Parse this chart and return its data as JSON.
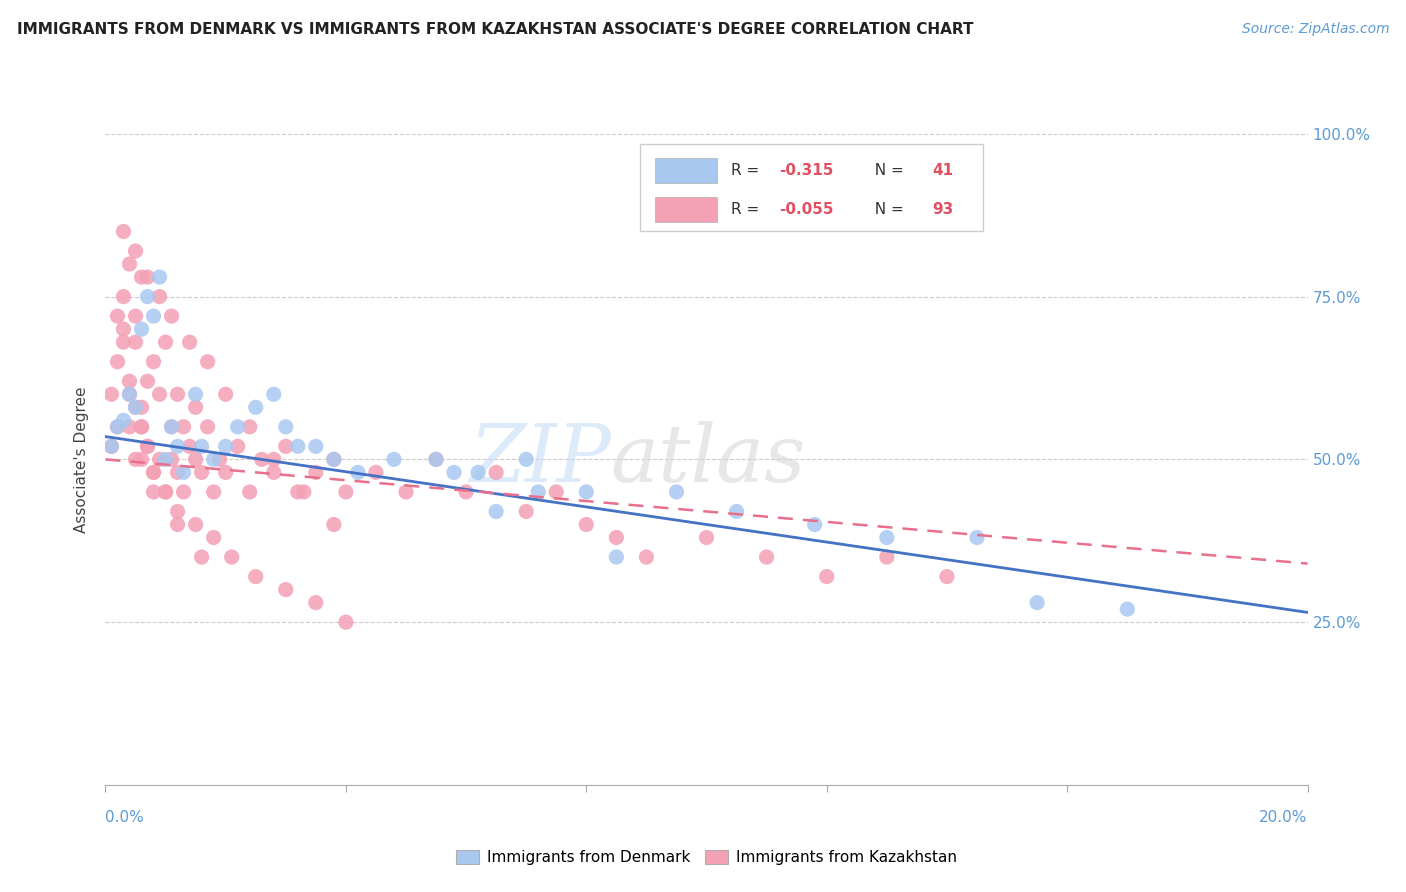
{
  "title": "IMMIGRANTS FROM DENMARK VS IMMIGRANTS FROM KAZAKHSTAN ASSOCIATE'S DEGREE CORRELATION CHART",
  "source_text": "Source: ZipAtlas.com",
  "ylabel": "Associate's Degree",
  "denmark_color": "#a8c8f0",
  "kazakhstan_color": "#f4a0b5",
  "denmark_line_color": "#4472c4",
  "kazakhstan_line_color": "#e8708a",
  "background_color": "#ffffff",
  "legend_denmark_r": "R = ",
  "legend_denmark_rv": "-0.315",
  "legend_denmark_n": "N = ",
  "legend_denmark_nv": "41",
  "legend_kazakhstan_r": "R = ",
  "legend_kazakhstan_rv": "-0.055",
  "legend_kazakhstan_n": "N = ",
  "legend_kazakhstan_nv": "93",
  "watermark_zip": "ZIP",
  "watermark_atlas": "atlas",
  "denmark_scatter_x": [
    0.001,
    0.002,
    0.003,
    0.004,
    0.005,
    0.006,
    0.007,
    0.008,
    0.009,
    0.01,
    0.011,
    0.012,
    0.013,
    0.015,
    0.016,
    0.018,
    0.02,
    0.022,
    0.025,
    0.028,
    0.03,
    0.032,
    0.035,
    0.038,
    0.042,
    0.048,
    0.055,
    0.062,
    0.07,
    0.08,
    0.095,
    0.105,
    0.118,
    0.13,
    0.145,
    0.058,
    0.065,
    0.072,
    0.085,
    0.155,
    0.17
  ],
  "denmark_scatter_y": [
    0.52,
    0.55,
    0.56,
    0.6,
    0.58,
    0.7,
    0.75,
    0.72,
    0.78,
    0.5,
    0.55,
    0.52,
    0.48,
    0.6,
    0.52,
    0.5,
    0.52,
    0.55,
    0.58,
    0.6,
    0.55,
    0.52,
    0.52,
    0.5,
    0.48,
    0.5,
    0.5,
    0.48,
    0.5,
    0.45,
    0.45,
    0.42,
    0.4,
    0.38,
    0.38,
    0.48,
    0.42,
    0.45,
    0.35,
    0.28,
    0.27
  ],
  "kazakhstan_scatter_x": [
    0.001,
    0.001,
    0.002,
    0.002,
    0.003,
    0.003,
    0.004,
    0.004,
    0.005,
    0.005,
    0.005,
    0.006,
    0.006,
    0.006,
    0.007,
    0.007,
    0.008,
    0.008,
    0.009,
    0.009,
    0.01,
    0.01,
    0.011,
    0.011,
    0.012,
    0.012,
    0.013,
    0.013,
    0.014,
    0.015,
    0.015,
    0.016,
    0.017,
    0.018,
    0.019,
    0.02,
    0.022,
    0.024,
    0.026,
    0.028,
    0.03,
    0.032,
    0.035,
    0.038,
    0.04,
    0.045,
    0.05,
    0.055,
    0.06,
    0.065,
    0.07,
    0.075,
    0.08,
    0.085,
    0.09,
    0.1,
    0.11,
    0.12,
    0.13,
    0.14,
    0.002,
    0.003,
    0.004,
    0.005,
    0.006,
    0.007,
    0.008,
    0.01,
    0.012,
    0.015,
    0.018,
    0.021,
    0.025,
    0.03,
    0.035,
    0.04,
    0.003,
    0.005,
    0.007,
    0.009,
    0.011,
    0.014,
    0.017,
    0.02,
    0.024,
    0.028,
    0.033,
    0.038,
    0.004,
    0.006,
    0.008,
    0.012,
    0.016
  ],
  "kazakhstan_scatter_y": [
    0.52,
    0.6,
    0.55,
    0.65,
    0.7,
    0.75,
    0.8,
    0.6,
    0.68,
    0.72,
    0.5,
    0.58,
    0.78,
    0.55,
    0.62,
    0.52,
    0.65,
    0.48,
    0.6,
    0.5,
    0.68,
    0.45,
    0.55,
    0.5,
    0.6,
    0.48,
    0.55,
    0.45,
    0.52,
    0.5,
    0.58,
    0.48,
    0.55,
    0.45,
    0.5,
    0.48,
    0.52,
    0.45,
    0.5,
    0.48,
    0.52,
    0.45,
    0.48,
    0.5,
    0.45,
    0.48,
    0.45,
    0.5,
    0.45,
    0.48,
    0.42,
    0.45,
    0.4,
    0.38,
    0.35,
    0.38,
    0.35,
    0.32,
    0.35,
    0.32,
    0.72,
    0.68,
    0.62,
    0.58,
    0.55,
    0.52,
    0.48,
    0.45,
    0.42,
    0.4,
    0.38,
    0.35,
    0.32,
    0.3,
    0.28,
    0.25,
    0.85,
    0.82,
    0.78,
    0.75,
    0.72,
    0.68,
    0.65,
    0.6,
    0.55,
    0.5,
    0.45,
    0.4,
    0.55,
    0.5,
    0.45,
    0.4,
    0.35
  ],
  "xlim": [
    0.0,
    0.2
  ],
  "ylim": [
    0.0,
    1.0
  ],
  "yticks": [
    0.0,
    0.25,
    0.5,
    0.75,
    1.0
  ],
  "right_ytick_labels": [
    "",
    "25.0%",
    "50.0%",
    "75.0%",
    "100.0%"
  ],
  "dk_line_x": [
    0.0,
    0.2
  ],
  "dk_line_y": [
    0.535,
    0.265
  ],
  "kz_line_x": [
    0.0,
    0.2
  ],
  "kz_line_y": [
    0.5,
    0.34
  ]
}
